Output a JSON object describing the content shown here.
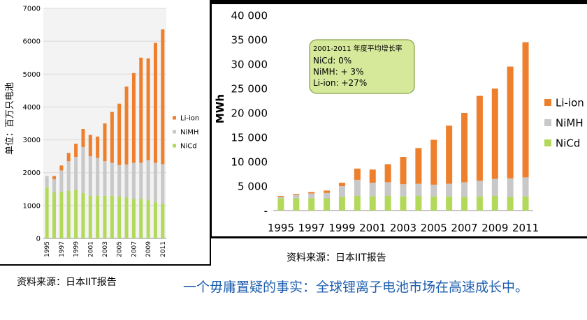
{
  "chart_data": [
    {
      "type": "bar",
      "stacked": true,
      "categories": [
        "1995",
        "1996",
        "1997",
        "1998",
        "1999",
        "2000",
        "2001",
        "2002",
        "2003",
        "2004",
        "2005",
        "2006",
        "2007",
        "2008",
        "2009",
        "2010",
        "2011"
      ],
      "xticklabels": [
        "1995",
        "",
        "1997",
        "",
        "1999",
        "",
        "2001",
        "",
        "2003",
        "",
        "2005",
        "",
        "2007",
        "",
        "2009",
        "",
        "2011"
      ],
      "ylabel": "单位：百万只电池",
      "ylim": [
        0,
        7000
      ],
      "yticks": [
        0,
        1000,
        2000,
        3000,
        4000,
        5000,
        6000,
        7000
      ],
      "grid": true,
      "legend_position": "right",
      "series": [
        {
          "name": "NiCd",
          "color": "#b3d95a",
          "values": [
            1550,
            1400,
            1420,
            1450,
            1480,
            1380,
            1300,
            1300,
            1300,
            1300,
            1280,
            1250,
            1200,
            1200,
            1180,
            1100,
            1060
          ]
        },
        {
          "name": "NiMH",
          "color": "#c8c8c8",
          "values": [
            350,
            400,
            650,
            900,
            1000,
            1400,
            1200,
            1150,
            1050,
            1000,
            950,
            1000,
            1100,
            1100,
            1200,
            1200,
            1200
          ]
        },
        {
          "name": "Li-ion",
          "color": "#ee7f2d",
          "values": [
            0,
            100,
            150,
            250,
            400,
            550,
            650,
            650,
            1150,
            1550,
            1870,
            2370,
            2730,
            3200,
            3100,
            3650,
            4100
          ]
        }
      ]
    },
    {
      "type": "bar",
      "stacked": true,
      "categories": [
        "1995",
        "1996",
        "1997",
        "1998",
        "1999",
        "2000",
        "2001",
        "2002",
        "2003",
        "2004",
        "2005",
        "2006",
        "2007",
        "2008",
        "2009",
        "2010",
        "2011"
      ],
      "xticklabels": [
        "1995",
        "",
        "1997",
        "",
        "1999",
        "",
        "2001",
        "",
        "2003",
        "",
        "2005",
        "",
        "2007",
        "",
        "2009",
        "",
        "2011"
      ],
      "ylabel": "MWh",
      "ylim": [
        0,
        40000
      ],
      "yticks": [
        0,
        5000,
        10000,
        15000,
        20000,
        25000,
        30000,
        35000,
        40000
      ],
      "yticklabels": [
        "-",
        "5 000",
        "10 000",
        "15 000",
        "20 000",
        "25 000",
        "30 000",
        "35 000",
        "40 000"
      ],
      "grid": false,
      "legend_position": "right",
      "series": [
        {
          "name": "NiCd",
          "color": "#b3d95a",
          "values": [
            2500,
            2500,
            2500,
            2500,
            2800,
            3000,
            2900,
            3000,
            2900,
            3000,
            2900,
            2900,
            2800,
            2900,
            3000,
            2800,
            2900
          ]
        },
        {
          "name": "NiMH",
          "color": "#c8c8c8",
          "values": [
            300,
            700,
            1000,
            1100,
            2200,
            3300,
            2800,
            2800,
            2500,
            2500,
            2400,
            2600,
            3000,
            3200,
            3500,
            3800,
            3900
          ]
        },
        {
          "name": "Li-ion",
          "color": "#ee7f2d",
          "values": [
            200,
            200,
            300,
            500,
            700,
            2300,
            2700,
            3700,
            5600,
            7300,
            9200,
            11900,
            14200,
            17400,
            18500,
            22900,
            27700
          ]
        }
      ],
      "annotation": {
        "title": "2001-2011 年度平均增长率",
        "lines": [
          "NiCd: 0%",
          "NiMH: + 3%",
          "Li-ion: +27%"
        ]
      }
    }
  ],
  "captions": {
    "left_source": "资料来源：日本IIT报告",
    "right_source": "资料来源：日本IIT报告",
    "headline": "一个毋庸置疑的事实：全球锂离子电池市场在高速成长中。"
  }
}
